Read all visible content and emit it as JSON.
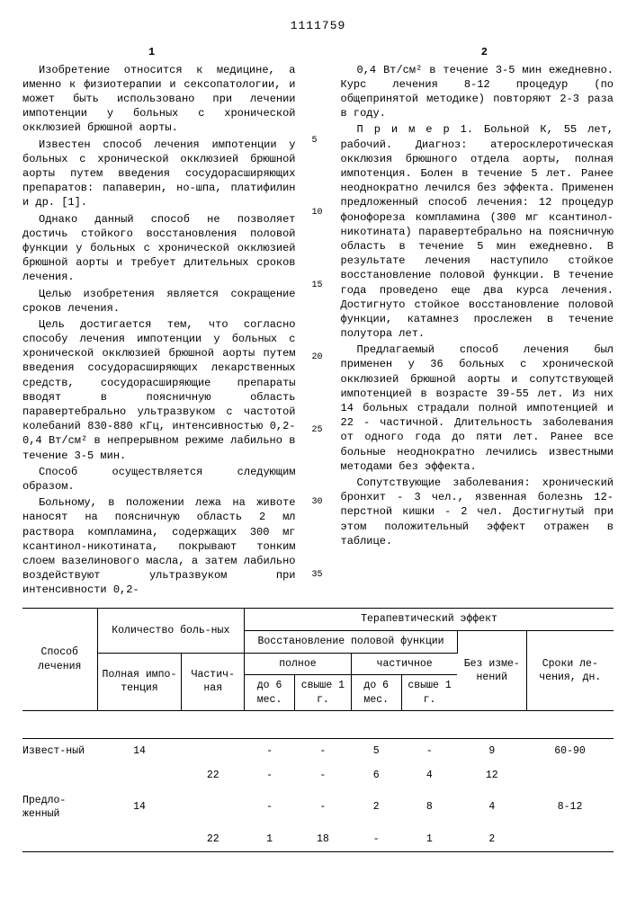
{
  "doc_number": "1111759",
  "page_left": "1",
  "page_right": "2",
  "linemarks": [
    "5",
    "10",
    "15",
    "20",
    "25",
    "30",
    "35"
  ],
  "left_col": [
    "Изобретение относится к медицине, а именно к физиотерапии и сексопатологии, и может быть использовано при лечении импотенции у больных с хронической окклюзией брюшной аорты.",
    "Известен способ лечения импотенции у больных с хронической окклюзией брюшной аорты путем введения сосудорасширяющих препаратов: папаверин, но-шпа, платифилин и др. [1].",
    "Однако данный способ не позволяет достичь стойкого восстановления половой функции у больных с хронической окклюзией брюшной аорты и требует длительных сроков лечения.",
    "Целью изобретения является сокращение сроков лечения.",
    "Цель достигается тем, что согласно способу лечения импотенции у больных с хронической окклюзией брюшной аорты путем введения сосудорасширяющих лекарственных средств, сосудорасширяющие препараты вводят в поясничную область паравертебрально ультразвуком с частотой колебаний 830-880 кГц, интенсивностью 0,2-0,4 Вт/см² в непрерывном режиме лабильно в течение 3-5 мин.",
    "Способ осуществляется следующим образом.",
    "Больному, в положении лежа на животе наносят на поясничную область 2 мл раствора компламина, содержащих 300 мг ксантинол-никотината, покрывают тонким слоем вазелинового масла, а затем лабильно воздействуют ультразвуком при интенсивности 0,2-"
  ],
  "right_col": [
    "0,4 Вт/см² в течение 3-5 мин ежедневно. Курс лечения 8-12 процедур (по общепринятой методике) повторяют 2-3 раза в году.",
    "П р и м е р 1. Больной К, 55 лет, рабочий. Диагноз: атеросклеротическая окклюзия брюшного отдела аорты, полная импотенция. Болен в течение 5 лет. Ранее неоднократно лечился без эффекта. Применен предложенный способ лечения: 12 процедур фонофореза компламина (300 мг ксантинол-никотината) паравертебрально на поясничную область в течение 5 мин ежедневно. В результате лечения наступило стойкое восстановление половой функции. В течение года проведено еще два курса лечения. Достигнуто стойкое восстановление половой функции, катамнез прослежен в течение полутора лет.",
    "Предлагаемый способ лечения был применен у 36 больных с хронической окклюзией брюшной аорты и сопутствующей импотенцией в возрасте 39-55 лет. Из них 14 больных страдали полной импотенцией и 22 - частичной. Длительность заболевания от одного года до пяти лет. Ранее все больные неоднократно лечились известными методами без эффекта.",
    "Сопутствующие заболевания: хронический бронхит - 3 чел., язвенная болезнь 12-перстной кишки - 2 чел. Достигнутый при этом положительный эффект отражен в таблице."
  ],
  "table": {
    "h_method": "Способ лечения",
    "h_count": "Количество боль-ных",
    "h_effect": "Терапевтический эффект",
    "h_full": "Полная импо-тенция",
    "h_partial": "Частич-ная",
    "h_restore": "Восстановление половой функции",
    "h_nochange": "Без изме-нений",
    "h_duration": "Сроки ле-чения, дн.",
    "h_rfull": "полное",
    "h_rpartial": "частичное",
    "h_6mo": "до 6 мес.",
    "h_1y": "свыше 1 г.",
    "rows": [
      {
        "method": "Извест-ный",
        "full": "14",
        "partial": "",
        "r1": "-",
        "r2": "-",
        "r3": "5",
        "r4": "-",
        "nc": "9",
        "dur": "60-90"
      },
      {
        "method": "",
        "full": "",
        "partial": "22",
        "r1": "-",
        "r2": "-",
        "r3": "6",
        "r4": "4",
        "nc": "12",
        "dur": ""
      },
      {
        "method": "Предло-женный",
        "full": "14",
        "partial": "",
        "r1": "-",
        "r2": "-",
        "r3": "2",
        "r4": "8",
        "nc": "4",
        "dur": "8-12"
      },
      {
        "method": "",
        "full": "",
        "partial": "22",
        "r1": "1",
        "r2": "18",
        "r3": "-",
        "r4": "1",
        "nc": "2",
        "dur": ""
      }
    ]
  }
}
